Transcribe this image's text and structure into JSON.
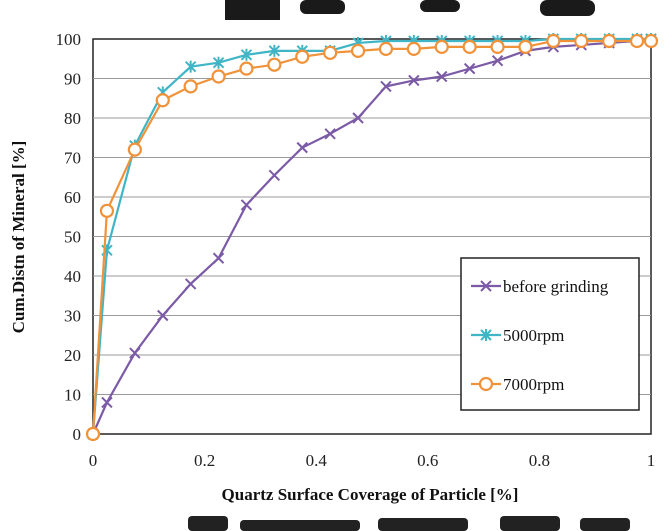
{
  "chart_data": {
    "type": "line",
    "title": "",
    "xlabel": "Quartz Surface Coverage of Particle   [%]",
    "ylabel": "Cum.Distn of Mineral [%]",
    "xlim": [
      0,
      1
    ],
    "ylim": [
      0,
      100
    ],
    "x_ticks": [
      "0",
      "0.2",
      "0.4",
      "0.6",
      "0.8",
      "1"
    ],
    "y_ticks": [
      "0",
      "10",
      "20",
      "30",
      "40",
      "50",
      "60",
      "70",
      "80",
      "90",
      "100"
    ],
    "grid": "horizontal",
    "legend_position": "bottom-right",
    "series": [
      {
        "name": "before grinding",
        "color": "#7b5aa6",
        "marker": "x",
        "x": [
          0,
          0.025,
          0.075,
          0.125,
          0.175,
          0.225,
          0.275,
          0.325,
          0.375,
          0.425,
          0.475,
          0.525,
          0.575,
          0.625,
          0.675,
          0.725,
          0.775,
          0.825,
          0.875,
          0.925,
          0.975,
          1.0
        ],
        "y": [
          0,
          8,
          20.5,
          30,
          38,
          44.5,
          58,
          65.5,
          72.5,
          76,
          80,
          88,
          89.5,
          90.5,
          92.5,
          94.5,
          97,
          98,
          98.5,
          99,
          99.5,
          100
        ]
      },
      {
        "name": "5000rpm",
        "color": "#3fb5c6",
        "marker": "asterisk",
        "x": [
          0,
          0.025,
          0.075,
          0.125,
          0.175,
          0.225,
          0.275,
          0.325,
          0.375,
          0.425,
          0.475,
          0.525,
          0.575,
          0.625,
          0.675,
          0.725,
          0.775,
          0.825,
          0.875,
          0.925,
          0.975,
          1.0
        ],
        "y": [
          0,
          46.5,
          73,
          86.5,
          93,
          94,
          96,
          97,
          97,
          97,
          99,
          99.5,
          99.5,
          99.5,
          99.5,
          99.5,
          99.5,
          100,
          100,
          100,
          100,
          100
        ]
      },
      {
        "name": "7000rpm",
        "color": "#f0923a",
        "marker": "circle",
        "x": [
          0,
          0.025,
          0.075,
          0.125,
          0.175,
          0.225,
          0.275,
          0.325,
          0.375,
          0.425,
          0.475,
          0.525,
          0.575,
          0.625,
          0.675,
          0.725,
          0.775,
          0.825,
          0.875,
          0.925,
          0.975,
          1.0
        ],
        "y": [
          0,
          56.5,
          72,
          84.5,
          88,
          90.5,
          92.5,
          93.5,
          95.5,
          96.5,
          97,
          97.5,
          97.5,
          98,
          98,
          98,
          98,
          99.5,
          99.5,
          99.5,
          99.5,
          99.5
        ]
      }
    ]
  }
}
